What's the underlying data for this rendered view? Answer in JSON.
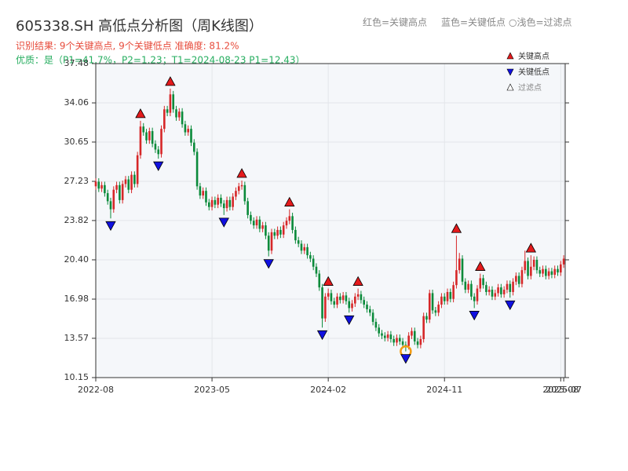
{
  "chart_data": {
    "type": "candlestick",
    "title": "605338.SH 高低点分析图（周K线图）",
    "subtitle": "识别结果: 9个关键高点, 9个关键低点  准确度: 81.2%",
    "annotations": [
      "优质：是（P1=41.7%，P2=1.23；T1=2024-08-23 P1=12.43）",
      "红色=关键高点",
      "蓝色=关键低点",
      "○浅色=过滤点"
    ],
    "up_color": "#d62728",
    "down_color": "#0a8a3a",
    "open": [
      26.8,
      27.2,
      26.6,
      26.9,
      26.2,
      25.5,
      24.8,
      26.5,
      26.9,
      25.6,
      27.0,
      27.4,
      26.5,
      27.8,
      27.0,
      29.5,
      32.0,
      31.5,
      30.8,
      31.6,
      30.5,
      30.0,
      29.6,
      31.8,
      33.5,
      33.2,
      34.8,
      33.5,
      32.8,
      33.3,
      32.2,
      31.5,
      31.8,
      30.6,
      29.8,
      26.8,
      26.0,
      26.4,
      25.4,
      25.0,
      25.6,
      25.2,
      25.8,
      25.3,
      24.9,
      25.6,
      25.0,
      25.9,
      26.4,
      26.8,
      26.9,
      25.5,
      24.3,
      23.8,
      23.4,
      23.9,
      23.1,
      23.4,
      22.5,
      21.2,
      22.8,
      22.5,
      23.0,
      22.6,
      23.4,
      23.8,
      24.2,
      23.0,
      22.1,
      21.8,
      21.2,
      21.5,
      20.8,
      20.5,
      19.8,
      19.2,
      18.0,
      15.3,
      17.2,
      17.5,
      16.8,
      16.5,
      17.2,
      16.9,
      17.3,
      16.8,
      16.2,
      16.6,
      17.2,
      17.4,
      16.9,
      16.5,
      16.1,
      15.8,
      15.0,
      14.5,
      14.0,
      13.8,
      13.6,
      13.9,
      13.5,
      13.2,
      13.6,
      13.3,
      13.0,
      12.9,
      13.8,
      14.2,
      13.3,
      13.0,
      13.5,
      15.5,
      15.2,
      17.5,
      16.0,
      15.8,
      16.5,
      17.2,
      16.8,
      17.6,
      17.0,
      18.2,
      19.5,
      20.5,
      18.5,
      17.8,
      18.3,
      17.2,
      16.8,
      17.9,
      18.8,
      18.2,
      17.6,
      17.8,
      17.2,
      17.5,
      18.0,
      17.4,
      17.8,
      18.3,
      17.6,
      18.5,
      19.0,
      18.3,
      19.5,
      20.3,
      19.0,
      19.8,
      20.4,
      19.5,
      19.2,
      19.6,
      19.0,
      19.4,
      19.1,
      19.6,
      19.3,
      20.0
    ],
    "high": [
      27.5,
      27.5,
      27.2,
      27.2,
      26.5,
      25.8,
      26.8,
      27.2,
      27.2,
      27.3,
      27.7,
      27.7,
      28.1,
      28.1,
      29.8,
      32.5,
      32.3,
      31.8,
      31.9,
      31.9,
      30.8,
      30.3,
      32.1,
      33.8,
      33.8,
      35.3,
      35.1,
      33.8,
      33.6,
      33.6,
      32.5,
      32.1,
      32.1,
      30.9,
      30.1,
      27.1,
      26.7,
      26.7,
      25.7,
      25.9,
      25.9,
      26.1,
      26.1,
      25.6,
      25.9,
      25.9,
      26.2,
      26.7,
      27.1,
      27.3,
      27.2,
      25.8,
      24.6,
      24.1,
      24.2,
      24.2,
      23.7,
      23.7,
      22.8,
      23.1,
      23.1,
      23.3,
      23.3,
      23.7,
      24.1,
      24.8,
      24.5,
      23.3,
      22.4,
      22.1,
      21.8,
      21.8,
      21.1,
      20.8,
      20.1,
      19.5,
      18.3,
      17.5,
      17.9,
      17.8,
      17.1,
      17.5,
      17.5,
      17.6,
      17.6,
      17.1,
      16.9,
      17.5,
      17.9,
      17.7,
      17.2,
      16.8,
      16.4,
      16.1,
      15.3,
      14.8,
      14.3,
      14.1,
      14.2,
      14.2,
      13.8,
      13.9,
      13.9,
      13.6,
      13.3,
      14.1,
      14.5,
      14.5,
      13.6,
      13.8,
      15.8,
      15.8,
      17.8,
      17.8,
      16.3,
      16.8,
      17.5,
      17.5,
      17.9,
      17.9,
      18.5,
      22.5,
      21.0,
      20.8,
      18.8,
      18.6,
      18.6,
      17.5,
      18.2,
      19.2,
      19.1,
      18.5,
      18.1,
      18.1,
      17.8,
      18.3,
      18.3,
      18.1,
      18.6,
      18.6,
      18.8,
      19.3,
      19.3,
      19.8,
      21.2,
      20.6,
      20.8,
      20.7,
      20.7,
      19.8,
      19.9,
      19.9,
      19.7,
      19.7,
      19.9,
      19.9,
      20.3,
      20.8
    ],
    "low": [
      26.5,
      26.3,
      26.3,
      25.9,
      25.2,
      24.0,
      24.5,
      26.2,
      25.3,
      25.3,
      26.7,
      26.2,
      26.2,
      26.7,
      26.7,
      29.2,
      31.2,
      30.5,
      30.5,
      30.2,
      29.7,
      29.2,
      29.3,
      31.5,
      32.9,
      32.9,
      33.2,
      32.5,
      32.5,
      31.9,
      31.2,
      31.2,
      30.3,
      29.5,
      26.5,
      25.7,
      25.7,
      25.1,
      24.7,
      24.7,
      24.9,
      24.9,
      25.0,
      24.3,
      24.6,
      24.7,
      24.7,
      25.6,
      26.1,
      26.5,
      25.2,
      24.0,
      23.5,
      23.1,
      23.1,
      22.8,
      22.8,
      22.2,
      20.7,
      20.9,
      22.2,
      22.2,
      22.3,
      22.3,
      23.1,
      23.5,
      22.7,
      21.8,
      21.5,
      20.9,
      20.9,
      20.5,
      20.2,
      19.5,
      18.9,
      17.7,
      14.5,
      15.0,
      16.9,
      16.5,
      16.2,
      16.2,
      16.6,
      16.6,
      16.5,
      15.8,
      15.9,
      16.3,
      16.9,
      16.6,
      16.2,
      15.8,
      15.5,
      14.7,
      14.2,
      13.7,
      13.5,
      13.3,
      13.3,
      13.2,
      12.9,
      12.9,
      13.0,
      12.7,
      12.43,
      12.6,
      13.5,
      13.0,
      12.7,
      12.7,
      13.2,
      14.9,
      14.9,
      15.7,
      15.5,
      15.5,
      16.2,
      16.5,
      16.5,
      16.7,
      16.7,
      17.9,
      19.2,
      18.2,
      17.5,
      17.5,
      16.9,
      16.2,
      16.5,
      17.6,
      17.9,
      17.3,
      17.3,
      16.9,
      16.9,
      17.2,
      17.1,
      17.1,
      17.5,
      17.1,
      17.3,
      18.2,
      18.0,
      18.0,
      19.2,
      18.7,
      18.7,
      19.5,
      19.2,
      18.9,
      18.9,
      18.7,
      18.7,
      18.8,
      18.8,
      19.0,
      19.0,
      19.7
    ],
    "close": [
      27.2,
      26.6,
      26.9,
      26.2,
      25.5,
      24.8,
      26.5,
      26.9,
      25.6,
      27.0,
      27.4,
      26.5,
      27.8,
      27.0,
      29.5,
      32.0,
      31.5,
      30.8,
      31.6,
      30.5,
      30.0,
      29.6,
      31.8,
      33.5,
      33.2,
      34.8,
      33.5,
      32.8,
      33.3,
      32.2,
      31.5,
      31.8,
      30.6,
      29.8,
      26.8,
      26.0,
      26.4,
      25.4,
      25.0,
      25.6,
      25.2,
      25.8,
      25.3,
      24.9,
      25.6,
      25.0,
      25.9,
      26.4,
      26.8,
      26.9,
      25.5,
      24.3,
      23.8,
      23.4,
      23.9,
      23.1,
      23.4,
      22.5,
      21.2,
      22.8,
      22.5,
      23.0,
      22.6,
      23.4,
      23.8,
      24.2,
      23.0,
      22.1,
      21.8,
      21.2,
      21.5,
      20.8,
      20.5,
      19.8,
      19.2,
      18.0,
      15.3,
      17.2,
      17.5,
      16.8,
      16.5,
      17.2,
      16.9,
      17.3,
      16.8,
      16.2,
      16.6,
      17.2,
      17.4,
      16.9,
      16.5,
      16.1,
      15.8,
      15.0,
      14.5,
      14.0,
      13.8,
      13.6,
      13.9,
      13.5,
      13.2,
      13.6,
      13.3,
      13.0,
      12.9,
      13.8,
      14.2,
      13.3,
      13.0,
      13.5,
      15.5,
      15.2,
      17.5,
      16.0,
      15.8,
      16.5,
      17.2,
      16.8,
      17.6,
      17.0,
      18.2,
      19.5,
      20.5,
      18.5,
      17.8,
      18.3,
      17.2,
      16.8,
      17.9,
      18.8,
      18.2,
      17.6,
      17.8,
      17.2,
      17.5,
      18.0,
      17.4,
      17.8,
      18.3,
      17.6,
      18.5,
      19.0,
      18.3,
      19.5,
      20.3,
      19.0,
      19.8,
      20.4,
      19.5,
      19.2,
      19.6,
      19.0,
      19.4,
      19.1,
      19.6,
      19.3,
      20.0,
      20.5
    ],
    "key_highs": {
      "name": "关键高点",
      "color": "#e41a1c",
      "x": [
        15,
        25,
        49,
        65,
        78,
        88,
        121,
        129,
        146
      ]
    },
    "key_lows": {
      "name": "关键低点",
      "color": "#1010e0",
      "x": [
        5,
        21,
        43,
        58,
        76,
        85,
        104,
        127,
        139
      ]
    },
    "filtered": {
      "name": "过滤点",
      "color": "#f39c12",
      "x": [
        104
      ]
    },
    "legend": "upper right",
    "ylim": [
      10.15,
      37.48
    ],
    "yticks": [
      10.15,
      13.57,
      16.98,
      {
        "value": 20.4,
        "label": "20.40"
      },
      23.82,
      27.23,
      30.65,
      34.06,
      37.48
    ],
    "xlim": [
      0,
      157.5
    ],
    "xticks": [
      {
        "value": 0,
        "label": "2022-08"
      },
      {
        "value": 39,
        "label": "2023-05"
      },
      {
        "value": 78,
        "label": "2024-02"
      },
      {
        "value": 117,
        "label": "2024-11"
      },
      {
        "value": 156,
        "label": "2025-08"
      },
      {
        "value": 157,
        "label": "2025-07"
      }
    ],
    "grid": true
  }
}
